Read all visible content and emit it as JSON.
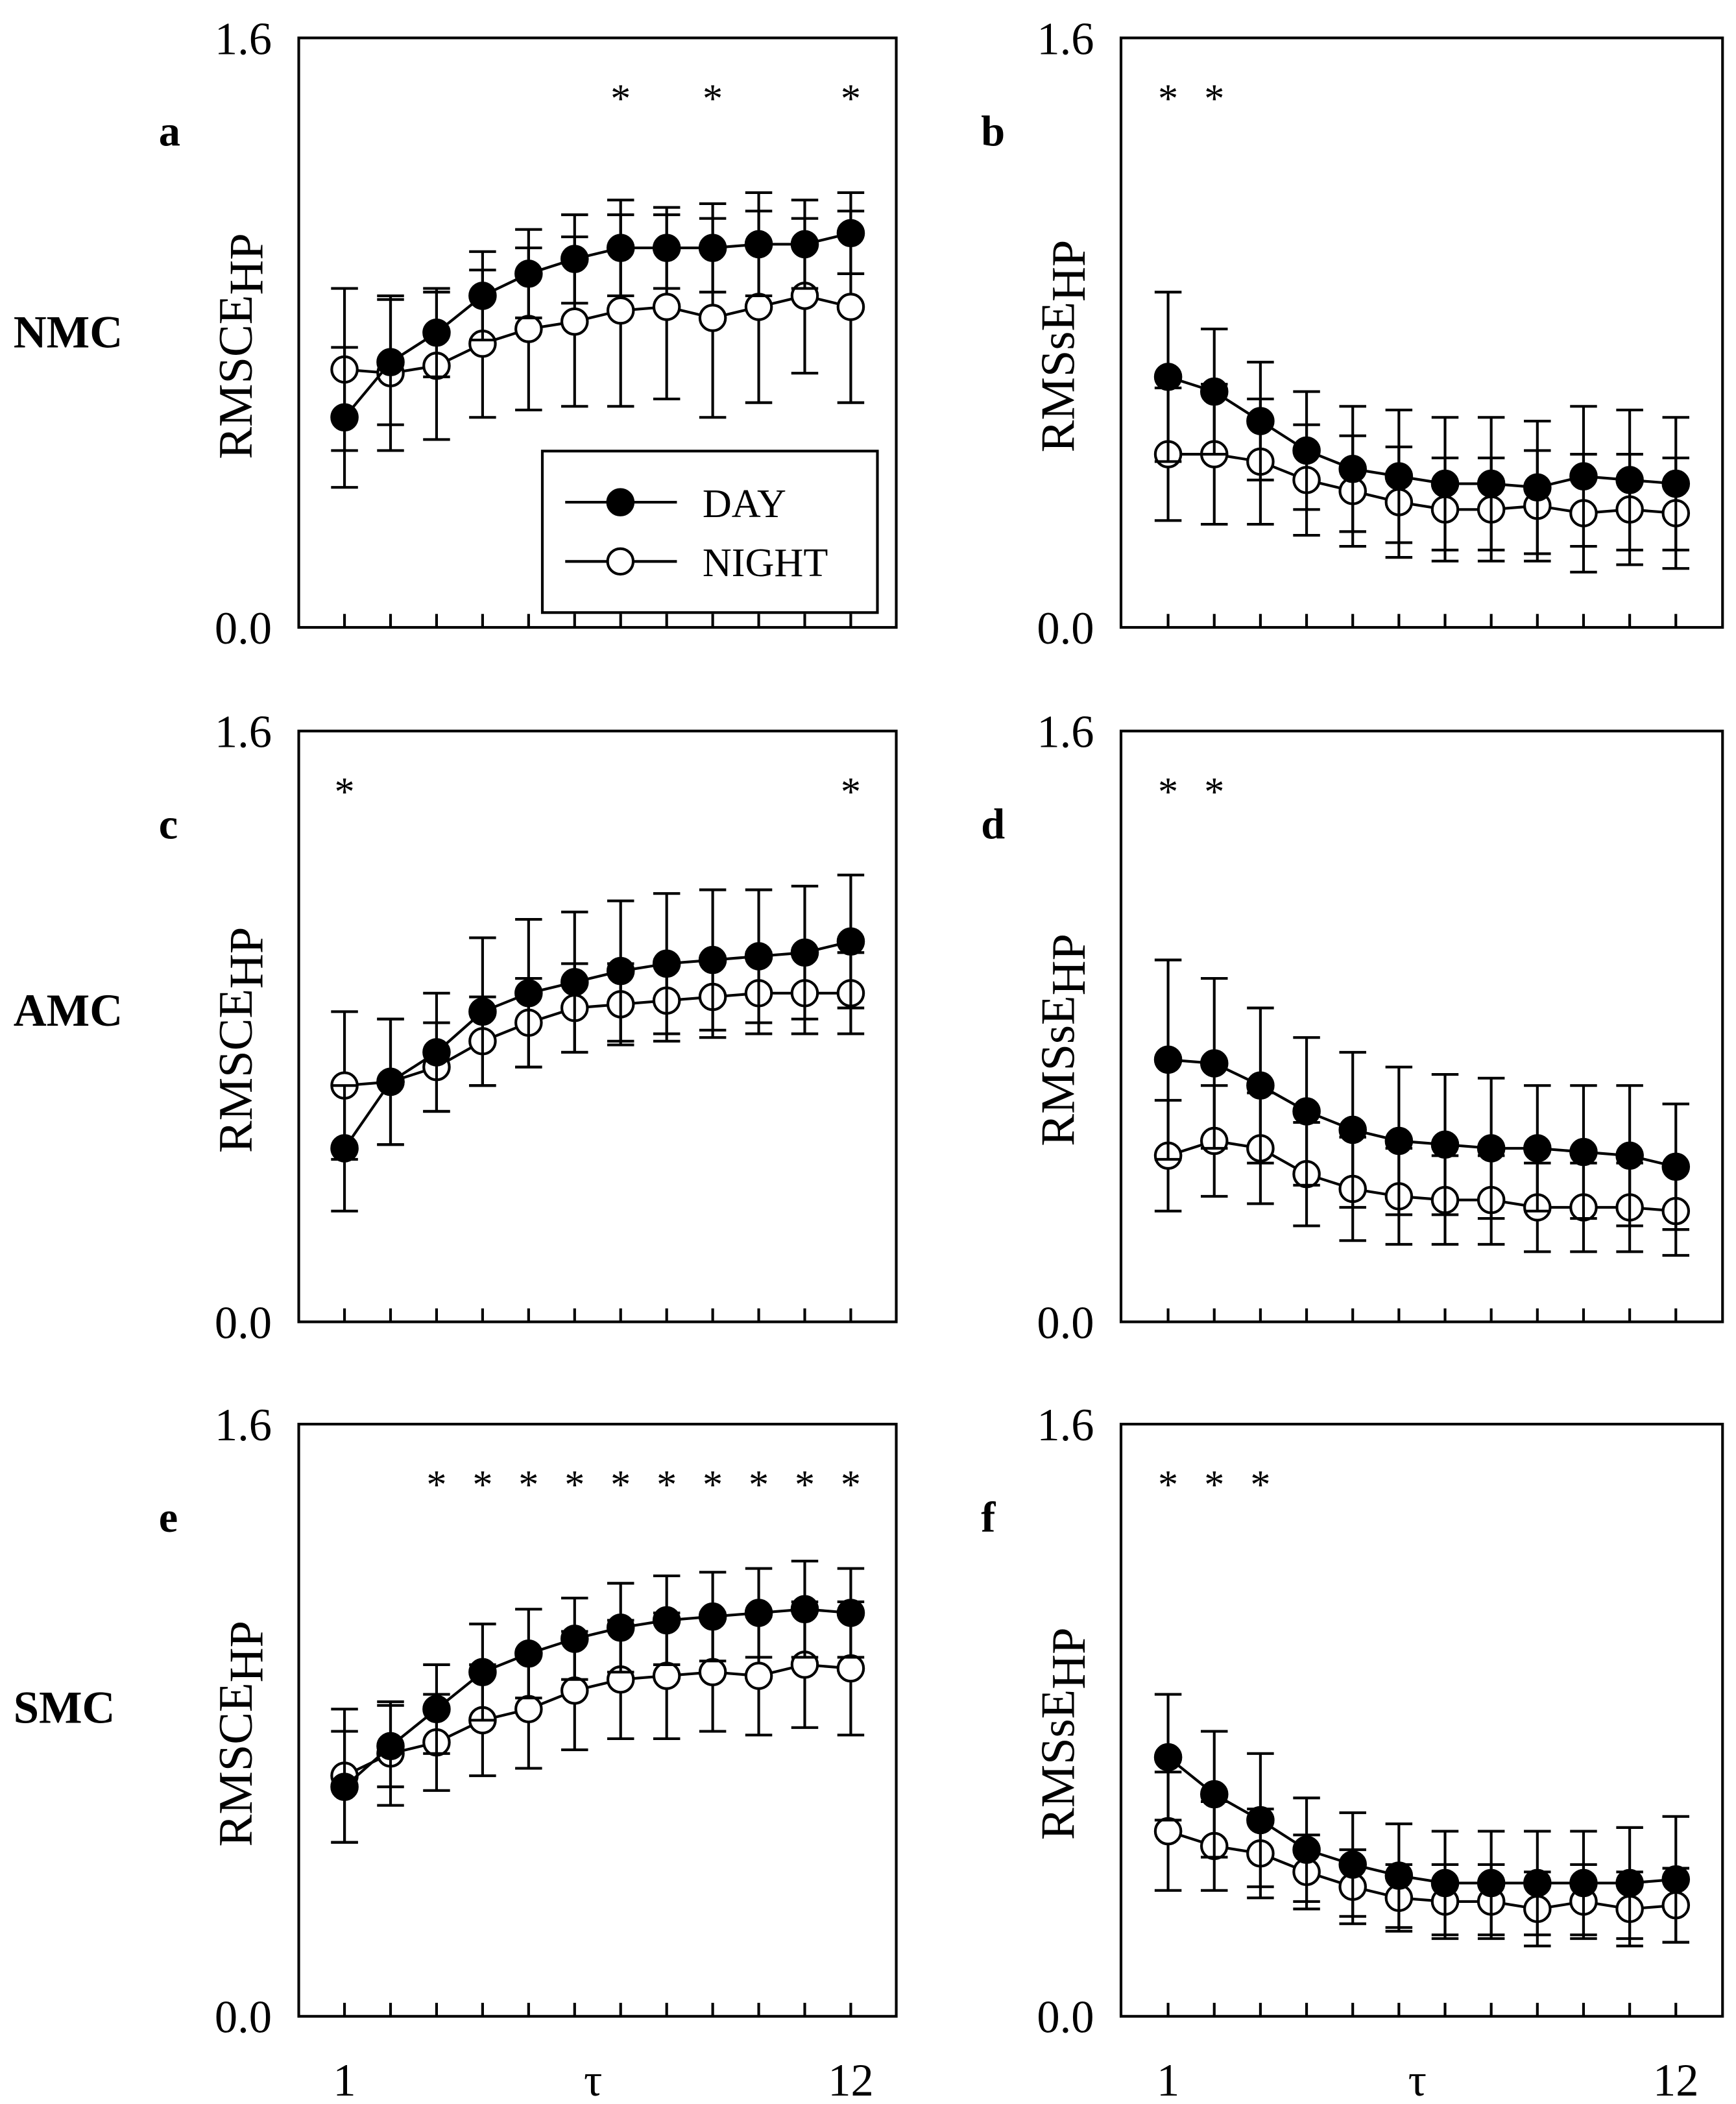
{
  "chart_data": {
    "type": "line",
    "x": [
      1,
      2,
      3,
      4,
      5,
      6,
      7,
      8,
      9,
      10,
      11,
      12
    ],
    "x_tick_labels": [
      "1",
      "τ",
      "12"
    ],
    "xlabel": "τ",
    "ylim": [
      0.0,
      1.6
    ],
    "y_tick_labels": [
      "0.0",
      "1.6"
    ],
    "legend": {
      "placement": "bottom-right of panel a",
      "entries": [
        {
          "name": "DAY",
          "marker": "filled-circle"
        },
        {
          "name": "NIGHT",
          "marker": "open-circle"
        }
      ]
    },
    "row_labels": [
      "NMC",
      "AMC",
      "SMC"
    ],
    "panels": [
      {
        "letter": "a",
        "row": "NMC",
        "ylabel": "RMSCE",
        "ylabel_sub": "HP",
        "stars": [
          7,
          9,
          12
        ],
        "series": [
          {
            "name": "DAY",
            "values": [
              0.57,
              0.72,
              0.8,
              0.9,
              0.96,
              1.0,
              1.03,
              1.03,
              1.03,
              1.04,
              1.04,
              1.07
            ],
            "err": [
              0.19,
              0.17,
              0.12,
              0.12,
              0.12,
              0.12,
              0.13,
              0.11,
              0.12,
              0.14,
              0.12,
              0.11
            ]
          },
          {
            "name": "NIGHT",
            "values": [
              0.7,
              0.69,
              0.71,
              0.77,
              0.81,
              0.83,
              0.86,
              0.87,
              0.84,
              0.87,
              0.9,
              0.87
            ],
            "err": [
              0.22,
              0.21,
              0.2,
              0.2,
              0.22,
              0.23,
              0.26,
              0.25,
              0.27,
              0.26,
              0.21,
              0.26
            ]
          }
        ]
      },
      {
        "letter": "b",
        "row": "NMC",
        "ylabel": "RMSsE",
        "ylabel_sub": "HP",
        "stars": [
          1,
          2
        ],
        "series": [
          {
            "name": "DAY",
            "values": [
              0.68,
              0.64,
              0.56,
              0.48,
              0.43,
              0.41,
              0.39,
              0.39,
              0.38,
              0.41,
              0.4,
              0.39
            ],
            "err": [
              0.23,
              0.17,
              0.16,
              0.16,
              0.17,
              0.18,
              0.18,
              0.18,
              0.18,
              0.19,
              0.19,
              0.18
            ]
          },
          {
            "name": "NIGHT",
            "values": [
              0.47,
              0.47,
              0.45,
              0.4,
              0.37,
              0.34,
              0.32,
              0.32,
              0.33,
              0.31,
              0.32,
              0.31
            ],
            "err": [
              0.18,
              0.19,
              0.17,
              0.15,
              0.15,
              0.15,
              0.14,
              0.14,
              0.15,
              0.16,
              0.15,
              0.15
            ]
          }
        ]
      },
      {
        "letter": "c",
        "row": "AMC",
        "ylabel": "RMSCE",
        "ylabel_sub": "HP",
        "stars": [
          1,
          12
        ],
        "series": [
          {
            "name": "DAY",
            "values": [
              0.47,
              0.65,
              0.73,
              0.84,
              0.89,
              0.92,
              0.95,
              0.97,
              0.98,
              0.99,
              1.0,
              1.03
            ],
            "err": [
              0.17,
              0.17,
              0.16,
              0.2,
              0.2,
              0.19,
              0.19,
              0.19,
              0.19,
              0.18,
              0.18,
              0.18
            ]
          },
          {
            "name": "NIGHT",
            "values": [
              0.64,
              0.65,
              0.69,
              0.76,
              0.81,
              0.85,
              0.86,
              0.87,
              0.88,
              0.89,
              0.89,
              0.89
            ],
            "err": [
              0.2,
              0.17,
              0.12,
              0.12,
              0.12,
              0.12,
              0.11,
              0.11,
              0.11,
              0.11,
              0.11,
              0.11
            ]
          }
        ]
      },
      {
        "letter": "d",
        "row": "AMC",
        "ylabel": "RMSsE",
        "ylabel_sub": "HP",
        "stars": [
          1,
          2
        ],
        "series": [
          {
            "name": "DAY",
            "values": [
              0.71,
              0.7,
              0.64,
              0.57,
              0.52,
              0.49,
              0.48,
              0.47,
              0.47,
              0.46,
              0.45,
              0.42
            ],
            "err": [
              0.27,
              0.23,
              0.21,
              0.2,
              0.21,
              0.2,
              0.19,
              0.19,
              0.17,
              0.18,
              0.19,
              0.17
            ]
          },
          {
            "name": "NIGHT",
            "values": [
              0.45,
              0.49,
              0.47,
              0.4,
              0.36,
              0.34,
              0.33,
              0.33,
              0.31,
              0.31,
              0.31,
              0.3
            ],
            "err": [
              0.15,
              0.15,
              0.15,
              0.14,
              0.14,
              0.13,
              0.12,
              0.12,
              0.12,
              0.12,
              0.12,
              0.12
            ]
          }
        ]
      },
      {
        "letter": "e",
        "row": "SMC",
        "ylabel": "RMSCE",
        "ylabel_sub": "HP",
        "stars": [
          3,
          4,
          5,
          6,
          7,
          8,
          9,
          10,
          11,
          12
        ],
        "series": [
          {
            "name": "DAY",
            "values": [
              0.62,
              0.73,
              0.83,
              0.93,
              0.98,
              1.02,
              1.05,
              1.07,
              1.08,
              1.09,
              1.1,
              1.09
            ],
            "err": [
              0.15,
              0.11,
              0.12,
              0.13,
              0.12,
              0.11,
              0.12,
              0.12,
              0.12,
              0.12,
              0.13,
              0.12
            ]
          },
          {
            "name": "NIGHT",
            "values": [
              0.65,
              0.71,
              0.74,
              0.8,
              0.83,
              0.88,
              0.91,
              0.92,
              0.93,
              0.92,
              0.95,
              0.94
            ],
            "err": [
              0.18,
              0.14,
              0.13,
              0.15,
              0.16,
              0.16,
              0.16,
              0.17,
              0.16,
              0.16,
              0.17,
              0.18
            ]
          }
        ]
      },
      {
        "letter": "f",
        "row": "SMC",
        "ylabel": "RMSsE",
        "ylabel_sub": "HP",
        "stars": [
          1,
          2,
          3
        ],
        "series": [
          {
            "name": "DAY",
            "values": [
              0.7,
              0.6,
              0.53,
              0.45,
              0.41,
              0.38,
              0.36,
              0.36,
              0.36,
              0.36,
              0.36,
              0.37
            ],
            "err": [
              0.17,
              0.17,
              0.18,
              0.14,
              0.14,
              0.14,
              0.14,
              0.14,
              0.14,
              0.14,
              0.15,
              0.17
            ]
          },
          {
            "name": "NIGHT",
            "values": [
              0.5,
              0.46,
              0.44,
              0.39,
              0.35,
              0.32,
              0.31,
              0.31,
              0.29,
              0.31,
              0.29,
              0.3
            ],
            "err": [
              0.16,
              0.12,
              0.12,
              0.1,
              0.1,
              0.09,
              0.1,
              0.1,
              0.1,
              0.1,
              0.1,
              0.1
            ]
          }
        ]
      }
    ]
  }
}
